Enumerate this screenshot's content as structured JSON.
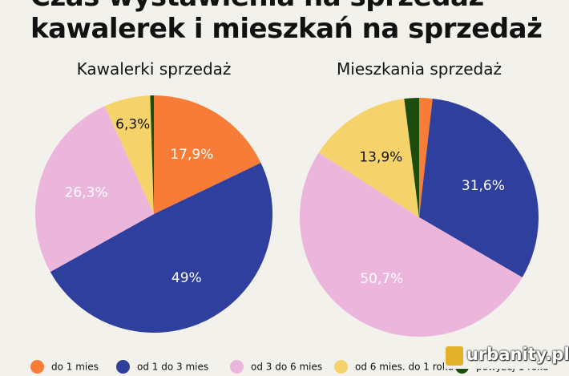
{
  "title": {
    "line1": "Czas wystawienia na sprzedaż",
    "line2": "kawalerek i mieszkań na sprzedaż"
  },
  "legend": [
    {
      "label": "do 1 mies",
      "color": "#f77c37"
    },
    {
      "label": "od 1 do 3 mies",
      "color": "#2f3f9e"
    },
    {
      "label": "od 3 do 6 mies",
      "color": "#ecb5dc"
    },
    {
      "label": "od 6 mies. do 1 roku",
      "color": "#f6d36a"
    },
    {
      "label": "powyżej 1 roku",
      "color": "#1d4d0d"
    }
  ],
  "watermark": {
    "text": "urbanity.pl"
  },
  "chart_data": [
    {
      "type": "pie",
      "title": "Kawalerki sprzedaż",
      "categories": [
        "do 1 mies",
        "od 1 do 3 mies",
        "od 3 do 6 mies",
        "od 6 mies. do 1 roku",
        "powyżej 1 roku"
      ],
      "values": [
        17.9,
        49,
        26.3,
        6.3,
        0.5
      ],
      "labels": [
        "17,9%",
        "49%",
        "26,3%",
        "6,3%",
        ""
      ],
      "colors": [
        "#f77c37",
        "#2f3f9e",
        "#ecb5dc",
        "#f6d36a",
        "#1d4d0d"
      ],
      "label_colors": [
        "#ffffff",
        "#ffffff",
        "#ffffff",
        "#111111",
        "#ffffff"
      ]
    },
    {
      "type": "pie",
      "title": "Mieszkania sprzedaż",
      "categories": [
        "do 1 mies",
        "od 1 do 3 mies",
        "od 3 do 6 mies",
        "od 6 mies. do 1 roku",
        "powyżej 1 roku"
      ],
      "values": [
        1.8,
        31.6,
        50.7,
        13.9,
        2
      ],
      "labels": [
        "",
        "31,6%",
        "50,7%",
        "13,9%",
        ""
      ],
      "colors": [
        "#f77c37",
        "#2f3f9e",
        "#ecb5dc",
        "#f6d36a",
        "#1d4d0d"
      ],
      "label_colors": [
        "#ffffff",
        "#ffffff",
        "#ffffff",
        "#111111",
        "#ffffff"
      ]
    }
  ]
}
